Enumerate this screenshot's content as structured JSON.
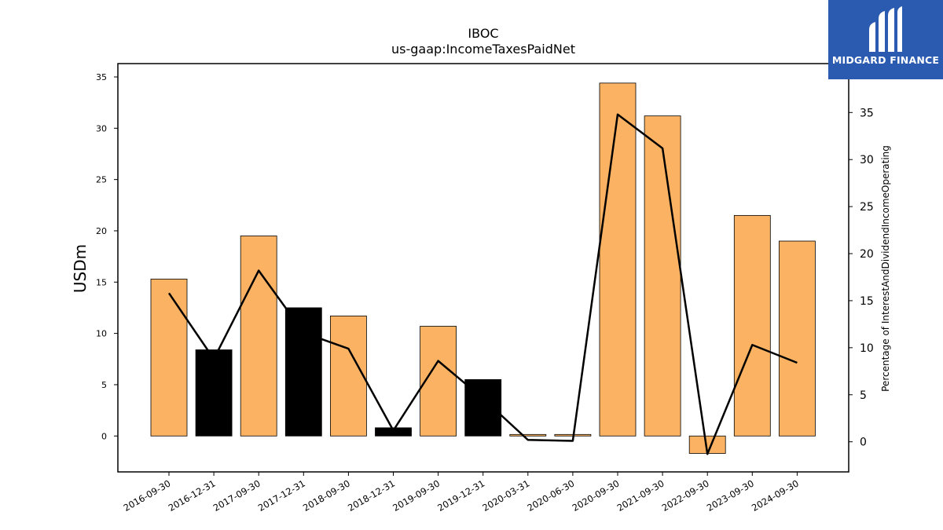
{
  "chart_data": {
    "type": "bar",
    "title": "IBOC",
    "subtitle": "us-gaap:IncomeTaxesPaidNet",
    "ylabel": "USDm",
    "ylabel_right": "Percentage of InterestAndDividendIncomeOperating",
    "ylim": [
      -3.5,
      36.3
    ],
    "y2lim": [
      -3.2,
      40.2
    ],
    "yticks": [
      0,
      5,
      10,
      15,
      20,
      25,
      30,
      35
    ],
    "y2ticks": [
      0,
      5,
      10,
      15,
      20,
      25,
      30,
      35
    ],
    "categories": [
      "2016-09-30",
      "2016-12-31",
      "2017-09-30",
      "2017-12-31",
      "2018-09-30",
      "2018-12-31",
      "2019-09-30",
      "2019-12-31",
      "2020-03-31",
      "2020-06-30",
      "2020-09-30",
      "2021-09-30",
      "2022-09-30",
      "2023-09-30",
      "2024-09-30"
    ],
    "values": [
      15.3,
      8.4,
      19.5,
      12.5,
      11.7,
      0.8,
      10.7,
      5.5,
      0.15,
      0.15,
      34.4,
      31.2,
      -1.7,
      21.5,
      19.0
    ],
    "bar_colors": [
      "#fbb363",
      "#000000",
      "#fbb363",
      "#000000",
      "#fbb363",
      "#000000",
      "#fbb363",
      "#000000",
      "#fbb363",
      "#fbb363",
      "#fbb363",
      "#fbb363",
      "#fbb363",
      "#fbb363",
      "#fbb363"
    ],
    "line_series": {
      "axis": "right",
      "color": "#000000",
      "values": [
        15.8,
        8.8,
        18.2,
        11.6,
        9.9,
        1.2,
        8.6,
        4.6,
        0.2,
        0.1,
        34.8,
        31.2,
        -1.3,
        10.3,
        8.4
      ]
    },
    "grid": false
  },
  "logo": {
    "text": "MIDGARD FINANCE",
    "background": "#2b5bb0"
  }
}
